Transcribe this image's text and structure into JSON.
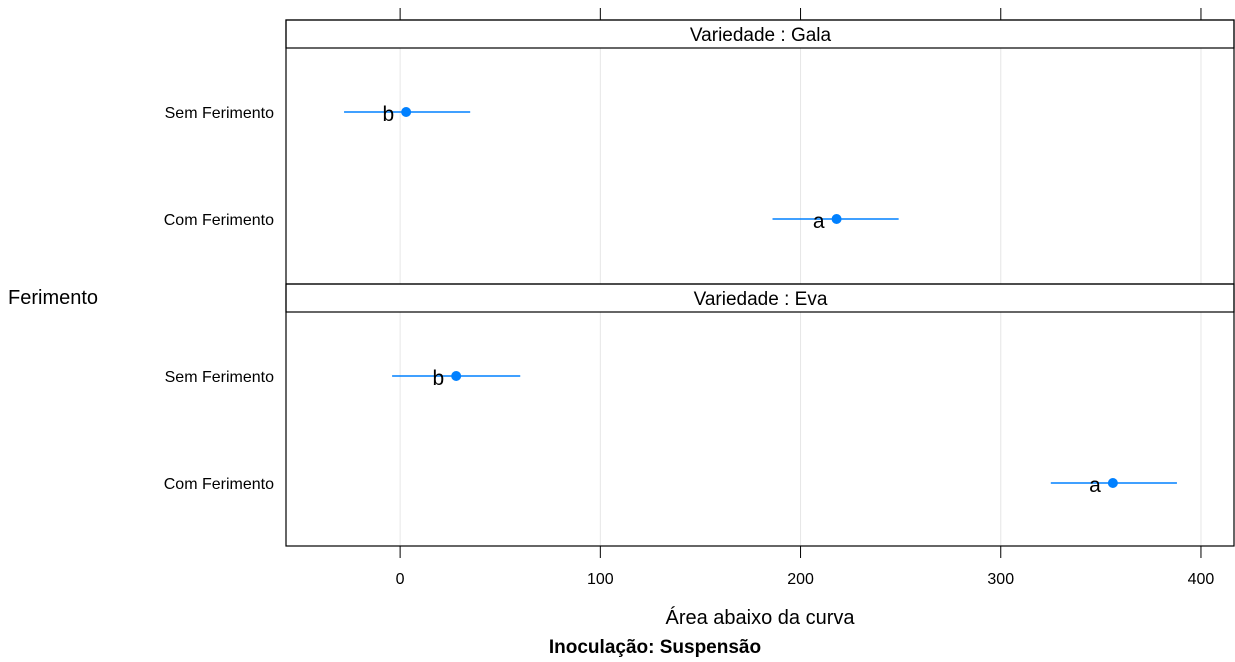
{
  "chart_data": {
    "type": "scatter",
    "xlabel": "Área abaixo da curva",
    "ylabel": "Ferimento",
    "caption": "Inoculação: Suspensão",
    "xlim": [
      -57,
      417
    ],
    "xticks": [
      0,
      100,
      200,
      300,
      400
    ],
    "grid": "vertical",
    "panels": [
      {
        "strip": "Variedade : Gala",
        "rows": [
          {
            "category": "Sem Ferimento",
            "estimate": 3,
            "lower": -28,
            "upper": 35,
            "letter": "b"
          },
          {
            "category": "Com Ferimento",
            "estimate": 218,
            "lower": 186,
            "upper": 249,
            "letter": "a"
          }
        ]
      },
      {
        "strip": "Variedade : Eva",
        "rows": [
          {
            "category": "Sem Ferimento",
            "estimate": 28,
            "lower": -4,
            "upper": 60,
            "letter": "b"
          },
          {
            "category": "Com Ferimento",
            "estimate": 356,
            "lower": 325,
            "upper": 388,
            "letter": "a"
          }
        ]
      }
    ]
  }
}
